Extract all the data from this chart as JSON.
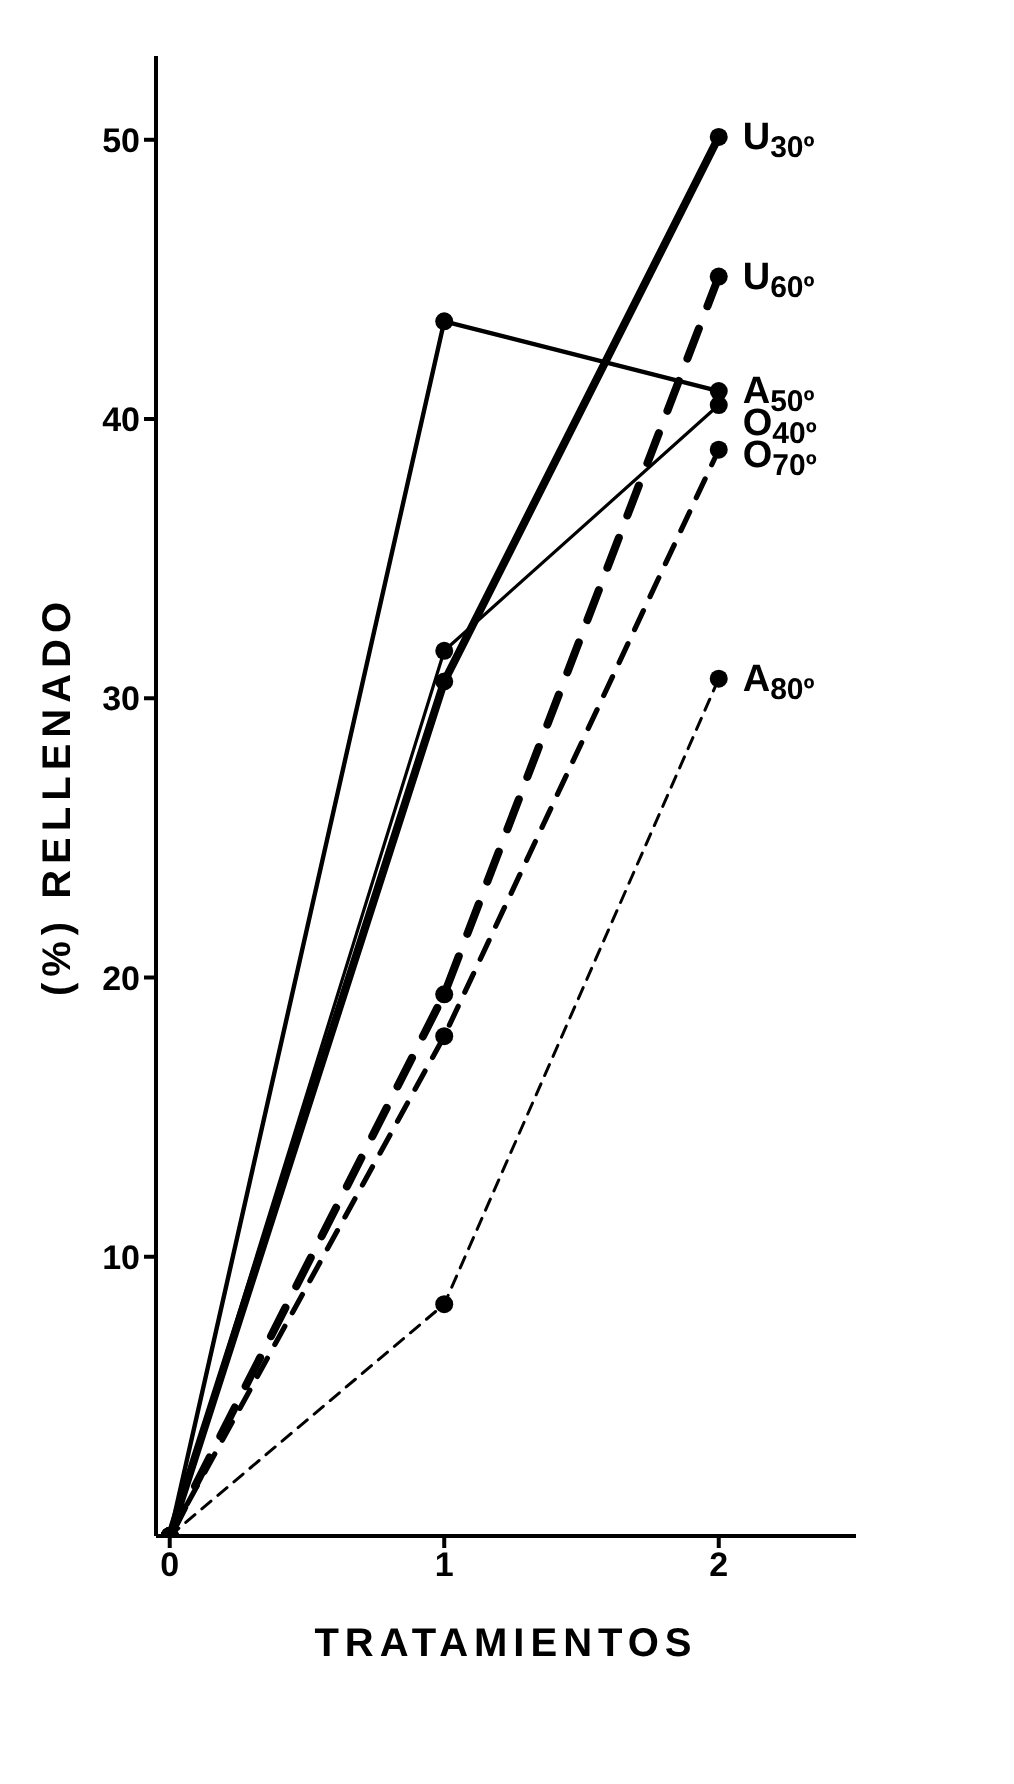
{
  "chart_data": {
    "type": "line",
    "xlabel": "TRATAMIENTOS",
    "ylabel": "(%) RELLENADO",
    "xlim": [
      -0.05,
      2.5
    ],
    "xticks": [
      0,
      1,
      2
    ],
    "ylim": [
      0,
      53
    ],
    "yticks": [
      10,
      20,
      30,
      40,
      50
    ],
    "x": [
      0,
      1,
      2
    ],
    "marker": "circle",
    "grid": false,
    "legend": false,
    "series": [
      {
        "name": "U$_{30º}$",
        "color": "#000000",
        "line_style": "solid",
        "values": [
          0,
          30.6,
          50.1
        ]
      },
      {
        "name": "U$_{60º}$",
        "color": "#000000",
        "line_style": "dashed",
        "values": [
          0,
          19.4,
          45.1
        ]
      },
      {
        "name": "A$_{50º}$",
        "color": "#000000",
        "line_style": "solid",
        "values": [
          0,
          43.5,
          41.0
        ]
      },
      {
        "name": "O$_{40º}$",
        "color": "#000000",
        "line_style": "solid",
        "values": [
          0,
          31.7,
          40.5
        ]
      },
      {
        "name": "O$_{70º}$",
        "color": "#000000",
        "line_style": "dashed",
        "values": [
          0,
          17.9,
          38.9
        ]
      },
      {
        "name": "A$_{80º}$",
        "color": "#000000",
        "line_style": "dashed",
        "values": [
          0,
          8.3,
          30.7
        ]
      }
    ]
  }
}
